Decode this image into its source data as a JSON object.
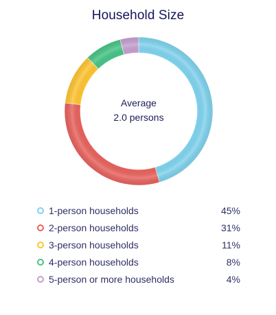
{
  "chart_data": {
    "type": "pie",
    "variant": "donut",
    "title": "Household Size",
    "center_label_line1": "Average",
    "center_label_line2": "2.0 persons",
    "categories": [
      "1-person households",
      "2-person households",
      "3-person households",
      "4-person households",
      "5-person or more households"
    ],
    "values": [
      45,
      31,
      11,
      8,
      4
    ],
    "value_labels": [
      "45%",
      "31%",
      "11%",
      "8%",
      "4%"
    ],
    "colors": [
      "#7fd3ee",
      "#e8625d",
      "#ffc531",
      "#45c486",
      "#c49fd0"
    ],
    "legend_position": "bottom"
  }
}
